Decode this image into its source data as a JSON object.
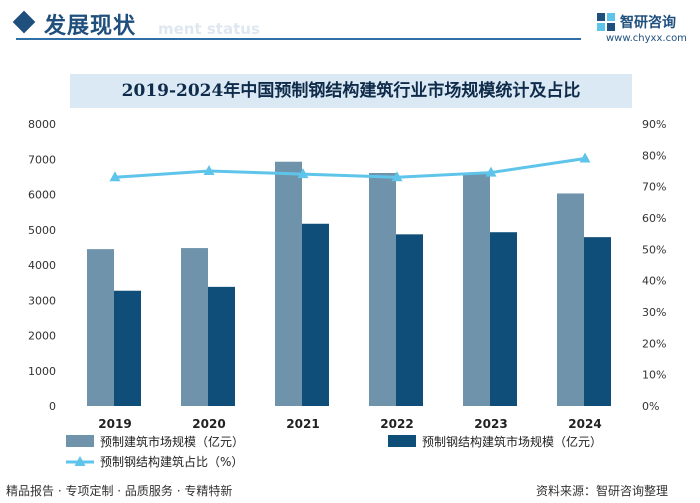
{
  "header": {
    "section_title": "发展现状",
    "ghost_text": "ment status",
    "brand_name": "智研咨询",
    "brand_url": "www.chyxx.com"
  },
  "footer": {
    "tagline": "精品报告 · 专项定制 · 品质服务 · 专精特新",
    "source": "资料来源：智研咨询整理"
  },
  "colors": {
    "bar_primary": "#6f93ab",
    "bar_secondary": "#0f4e78",
    "line": "#5ec4ea",
    "title_band": "#dbe9f5"
  },
  "chart_data": {
    "type": "bar",
    "title": "2019-2024年中国预制钢结构建筑行业市场规模统计及占比",
    "categories": [
      "2019",
      "2020",
      "2021",
      "2022",
      "2023",
      "2024"
    ],
    "series": [
      {
        "name": "预制建筑市场规模（亿元）",
        "type": "bar",
        "axis": "left",
        "values": [
          4450,
          4480,
          6930,
          6610,
          6610,
          6030
        ]
      },
      {
        "name": "预制钢结构建筑市场规模（亿元）",
        "type": "bar",
        "axis": "left",
        "values": [
          3270,
          3380,
          5170,
          4870,
          4930,
          4790
        ]
      },
      {
        "name": "预制钢结构建筑占比（%）",
        "type": "line",
        "axis": "right",
        "values": [
          73,
          75,
          74,
          73,
          74.5,
          79
        ]
      }
    ],
    "y_left": {
      "min": 0,
      "max": 8000,
      "ticks": [
        "0",
        "1000",
        "2000",
        "3000",
        "4000",
        "5000",
        "6000",
        "7000",
        "8000"
      ]
    },
    "y_right": {
      "min": 0,
      "max": 90,
      "ticks": [
        "0%",
        "10%",
        "20%",
        "30%",
        "40%",
        "50%",
        "60%",
        "70%",
        "80%",
        "90%"
      ]
    },
    "grid": false,
    "legend_position": "bottom"
  }
}
